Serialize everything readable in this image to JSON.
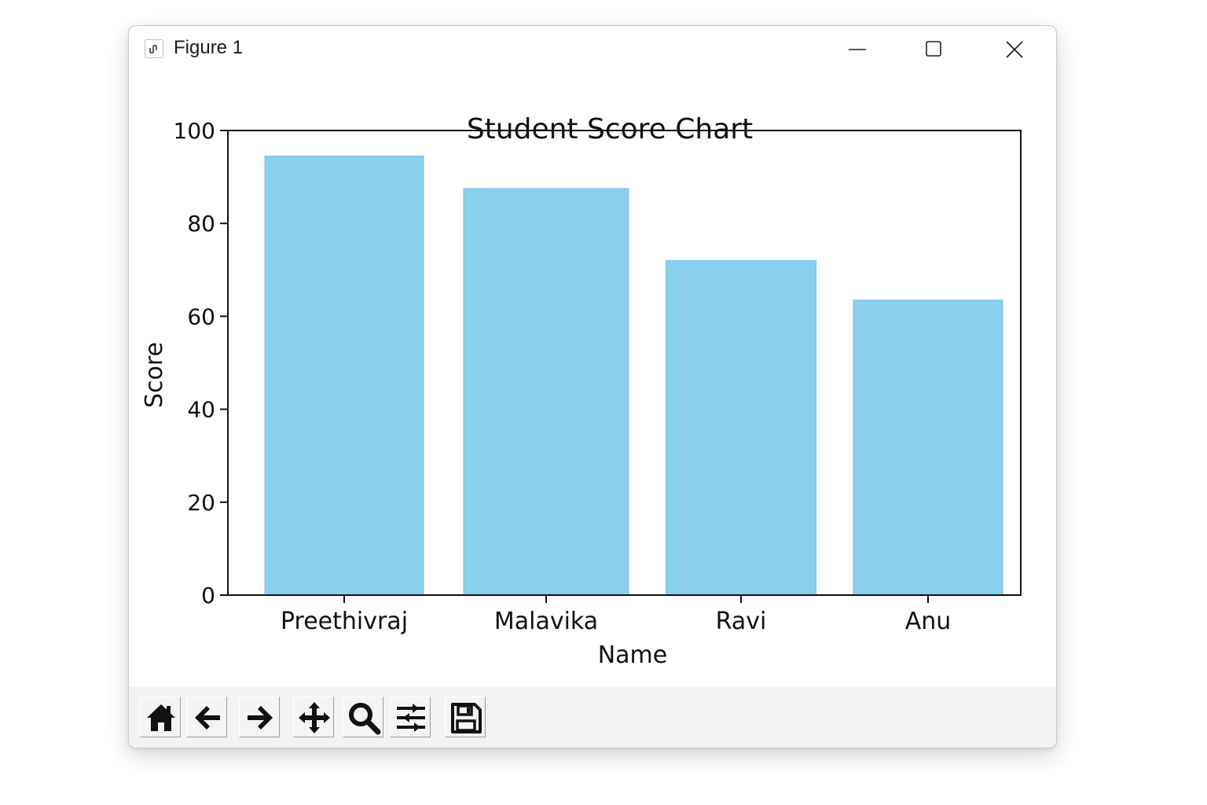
{
  "window": {
    "title": "Figure 1"
  },
  "toolbar": {
    "buttons": [
      {
        "name": "home-button",
        "icon": "home-icon"
      },
      {
        "name": "back-button",
        "icon": "back-arrow-icon"
      },
      {
        "name": "forward-button",
        "icon": "forward-arrow-icon"
      },
      {
        "name": "pan-button",
        "icon": "move-icon"
      },
      {
        "name": "zoom-button",
        "icon": "magnifier-icon"
      },
      {
        "name": "configure-subplots-button",
        "icon": "sliders-icon"
      },
      {
        "name": "save-button",
        "icon": "floppy-disk-icon"
      }
    ]
  },
  "chart_data": {
    "type": "bar",
    "title": "Student Score Chart",
    "xlabel": "Name",
    "ylabel": "Score",
    "categories": [
      "Preethivraj",
      "Malavika",
      "Ravi",
      "Anu"
    ],
    "values": [
      94.5,
      87.5,
      72,
      63.5
    ],
    "ylim": [
      0,
      100
    ],
    "yticks": [
      0,
      20,
      40,
      60,
      80,
      100
    ],
    "ytick_labels": [
      "0",
      "20",
      "40",
      "60",
      "80",
      "100"
    ],
    "bar_color": "#89CFEE",
    "grid": false
  }
}
